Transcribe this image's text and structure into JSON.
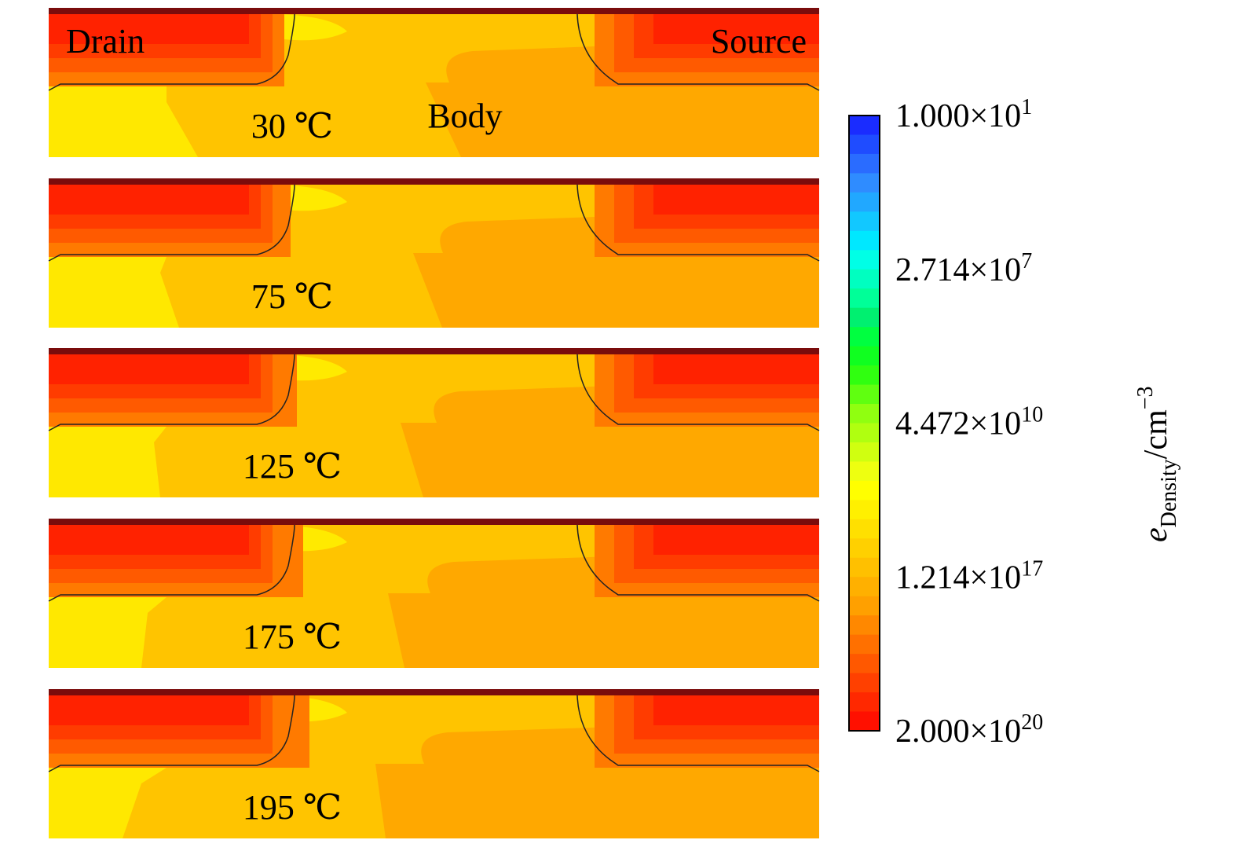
{
  "panels": [
    {
      "label": "30 ℃",
      "drain": "Drain",
      "source": "Source",
      "body": "Body"
    },
    {
      "label": "75 ℃"
    },
    {
      "label": "125 ℃"
    },
    {
      "label": "175 ℃"
    },
    {
      "label": "195 ℃"
    }
  ],
  "colorbar": {
    "ticks": [
      {
        "mantissa": "1.000×10",
        "exponent": "1"
      },
      {
        "mantissa": "2.714×10",
        "exponent": "7"
      },
      {
        "mantissa": "4.472×10",
        "exponent": "10"
      },
      {
        "mantissa": "1.214×10",
        "exponent": "17"
      },
      {
        "mantissa": "2.000×10",
        "exponent": "20"
      }
    ],
    "label": {
      "symbol": "e",
      "subscript": "Density",
      "unit": "/cm",
      "superscript": "−3"
    }
  }
}
